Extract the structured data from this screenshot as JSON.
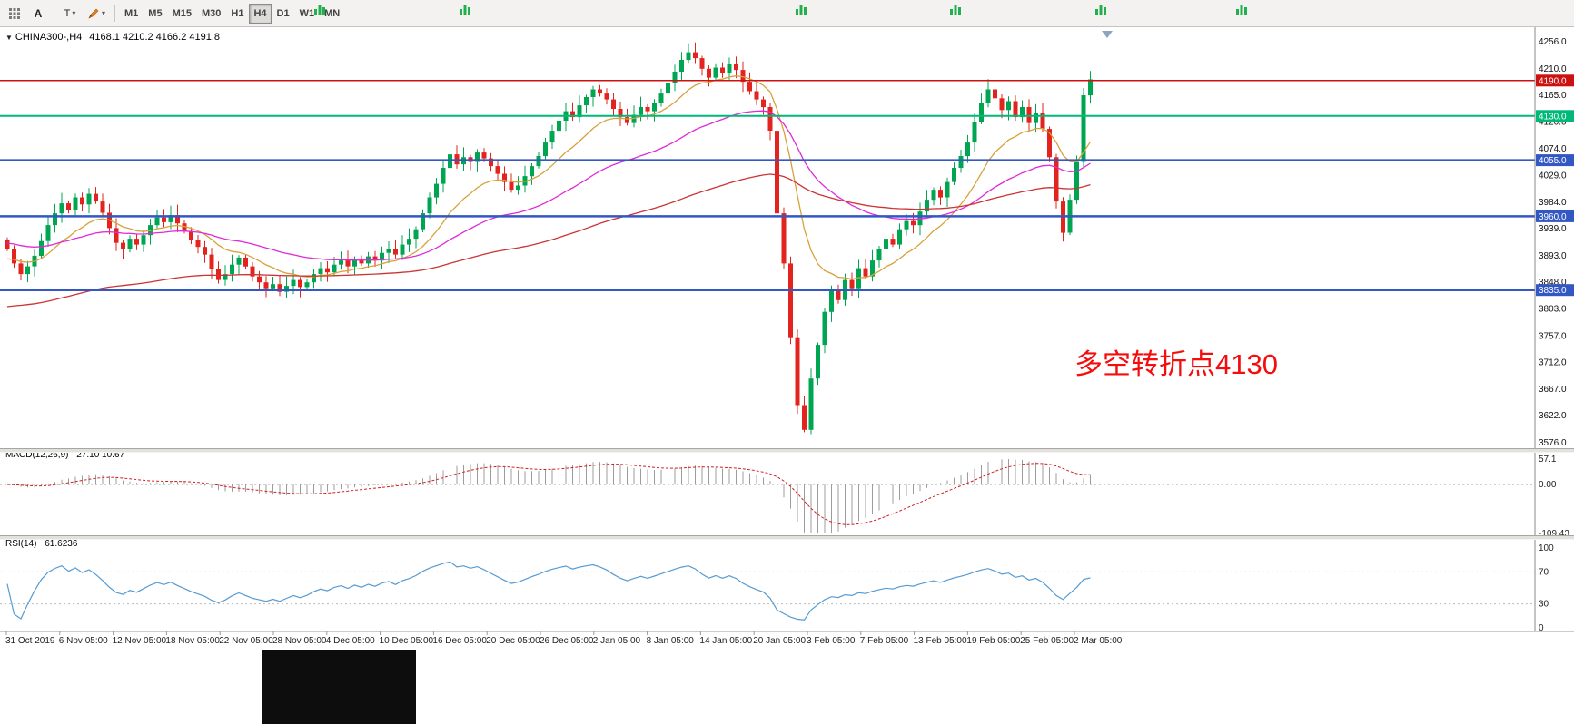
{
  "toolbar": {
    "text_label_tool": "A",
    "text_tool": "T",
    "timeframes": [
      "M1",
      "M5",
      "M15",
      "M30",
      "H1",
      "H4",
      "D1",
      "W1",
      "MN"
    ],
    "active_timeframe": "H4",
    "background_icons": {
      "name": "mini-chart-icon",
      "count": 6
    }
  },
  "chart": {
    "title": {
      "symbol": "CHINA300-,H4",
      "ohlc": "4168.1 4210.2 4166.2 4191.8"
    },
    "annotation": {
      "text": "多空转折点4130",
      "color": "#f50d0d"
    },
    "price_axis": {
      "ticks": [
        "4256.0",
        "4210.0",
        "4165.0",
        "4120.0",
        "4074.0",
        "4029.0",
        "3984.0",
        "3939.0",
        "3893.0",
        "3848.0",
        "3803.0",
        "3757.0",
        "3712.0",
        "3667.0",
        "3622.0",
        "3576.0"
      ]
    }
  },
  "chart_data": {
    "type": "candlestick",
    "symbol": "CHINA300-",
    "timeframe": "H4",
    "ohlc_display": {
      "open": 4168.1,
      "high": 4210.2,
      "low": 4166.2,
      "close": 4191.8
    },
    "price_range": [
      3570,
      4265
    ],
    "colors": {
      "up": "#00a551",
      "down": "#e3231e"
    },
    "candles": {
      "first_open": 3920,
      "closes": [
        3905,
        3880,
        3862,
        3875,
        3893,
        3918,
        3945,
        3965,
        3982,
        3970,
        3992,
        3980,
        3998,
        3985,
        3966,
        3940,
        3915,
        3905,
        3922,
        3912,
        3928,
        3945,
        3958,
        3950,
        3962,
        3948,
        3935,
        3920,
        3908,
        3895,
        3870,
        3852,
        3862,
        3878,
        3890,
        3875,
        3858,
        3848,
        3838,
        3845,
        3832,
        3842,
        3852,
        3840,
        3848,
        3862,
        3872,
        3865,
        3878,
        3885,
        3875,
        3888,
        3880,
        3892,
        3885,
        3898,
        3905,
        3895,
        3912,
        3922,
        3938,
        3965,
        3992,
        4015,
        4042,
        4065,
        4048,
        4060,
        4052,
        4068,
        4058,
        4045,
        4032,
        4018,
        4005,
        4012,
        4028,
        4045,
        4062,
        4085,
        4105,
        4122,
        4138,
        4128,
        4148,
        4162,
        4175,
        4168,
        4158,
        4142,
        4128,
        4118,
        4132,
        4145,
        4138,
        4152,
        4168,
        4185,
        4205,
        4225,
        4238,
        4228,
        4210,
        4195,
        4212,
        4202,
        4218,
        4208,
        4188,
        4172,
        4158,
        4145,
        4105,
        3965,
        3880,
        3755,
        3640,
        3598,
        3685,
        3742,
        3798,
        3835,
        3818,
        3852,
        3838,
        3872,
        3858,
        3885,
        3905,
        3922,
        3912,
        3938,
        3952,
        3945,
        3968,
        3988,
        4005,
        3992,
        4018,
        4042,
        4062,
        4085,
        4120,
        4152,
        4175,
        4160,
        4140,
        4155,
        4128,
        4145,
        4118,
        4135,
        4108,
        4060,
        3985,
        3932,
        3988,
        4052,
        4165,
        4192
      ]
    },
    "moving_averages": [
      {
        "name": "fast-ma",
        "period": 13,
        "color": "#d8a13a",
        "seed": 3885
      },
      {
        "name": "medium-ma",
        "period": 40,
        "color": "#e02ad8",
        "seed": 3915
      },
      {
        "name": "slow-ma",
        "period": 110,
        "color": "#cc3333",
        "seed": 3805
      }
    ],
    "hlines": [
      {
        "value": 4190,
        "color": "#cc1111",
        "width": 1.5
      },
      {
        "value": 4130,
        "color": "#00b878",
        "width": 2
      },
      {
        "value": 4055,
        "color": "#3358c4",
        "width": 2.5
      },
      {
        "value": 3960,
        "color": "#3358c4",
        "width": 2.5
      },
      {
        "value": 3835,
        "color": "#3358c4",
        "width": 2.5
      }
    ],
    "macd": {
      "label": "MACD(12,26,9)",
      "values": "27.10 10.67",
      "fast": 12,
      "slow": 26,
      "signal_period": 9,
      "axis": [
        57.1,
        0,
        -109.43
      ],
      "axis_labels": [
        "57.1",
        "0.00",
        "-109.43"
      ]
    },
    "rsi": {
      "label": "RSI(14)",
      "value": "61.6236",
      "period": 14,
      "levels": [
        100,
        70,
        30,
        0
      ],
      "color": "#569bd2"
    },
    "x_labels": [
      "31 Oct 2019",
      "6 Nov 05:00",
      "12 Nov 05:00",
      "18 Nov 05:00",
      "22 Nov 05:00",
      "28 Nov 05:00",
      "4 Dec 05:00",
      "10 Dec 05:00",
      "16 Dec 05:00",
      "20 Dec 05:00",
      "26 Dec 05:00",
      "2 Jan 05:00",
      "8 Jan 05:00",
      "14 Jan 05:00",
      "20 Jan 05:00",
      "3 Feb 05:00",
      "7 Feb 05:00",
      "13 Feb 05:00",
      "19 Feb 05:00",
      "25 Feb 05:00",
      "2 Mar 05:00"
    ]
  }
}
